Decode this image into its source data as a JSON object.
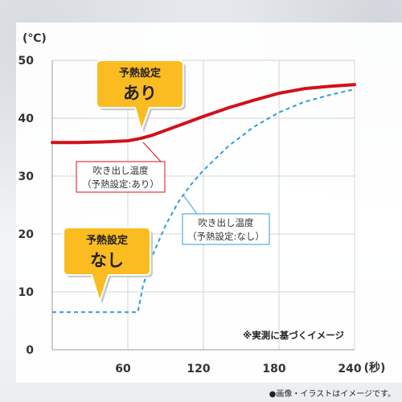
{
  "chart_data": {
    "type": "line",
    "ylabel": "(℃)",
    "xlabel": "(秒)",
    "xlim": [
      0,
      240
    ],
    "ylim": [
      0,
      50
    ],
    "xticks": [
      60,
      120,
      180,
      240
    ],
    "yticks": [
      0,
      10,
      20,
      30,
      40,
      50
    ],
    "grid": true,
    "series": [
      {
        "name": "吹き出し温度（予熱設定:あり）",
        "color": "#d0121b",
        "style": "solid",
        "x": [
          0,
          20,
          40,
          60,
          70,
          80,
          90,
          100,
          110,
          120,
          140,
          160,
          180,
          200,
          220,
          240
        ],
        "y": [
          35.8,
          35.8,
          35.9,
          36.1,
          36.5,
          37.1,
          37.9,
          38.7,
          39.5,
          40.3,
          41.8,
          43.1,
          44.3,
          45.1,
          45.5,
          45.8
        ]
      },
      {
        "name": "吹き出し温度（予熱設定:なし）",
        "color": "#2b9fd8",
        "style": "dashed",
        "x": [
          0,
          30,
          60,
          68,
          72,
          80,
          90,
          100,
          110,
          120,
          140,
          160,
          180,
          200,
          220,
          240
        ],
        "y": [
          6.5,
          6.5,
          6.5,
          6.5,
          11.0,
          16.5,
          21.5,
          25.5,
          28.5,
          31.0,
          35.2,
          38.5,
          41.0,
          42.8,
          44.0,
          45.0
        ]
      }
    ],
    "annotations": {
      "with_label_line1": "吹き出し温度",
      "with_label_line2": "（予熱設定:あり）",
      "without_label_line1": "吹き出し温度",
      "without_label_line2": "（予熱設定:なし）",
      "note": "※実測に基づくイメージ"
    }
  },
  "badges": {
    "with": {
      "line1": "予熱設定",
      "line2": "あり"
    },
    "without": {
      "line1": "予熱設定",
      "line2": "なし"
    }
  },
  "colors": {
    "badge_fill": "#fbbc21",
    "badge_shadow": "#c8c8c8"
  },
  "footer": "●画像・イラストはイメージです。"
}
